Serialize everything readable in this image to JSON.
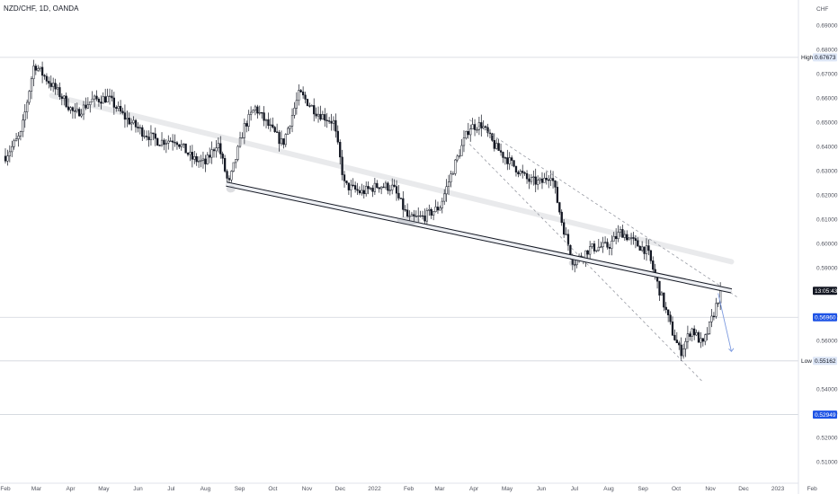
{
  "header": {
    "symbol": "NZD/CHF",
    "interval": "1D",
    "broker": "OANDA",
    "currency": "CHF"
  },
  "chart_data": {
    "type": "candlestick",
    "title": "NZD/CHF, 1D, OANDA",
    "x_ticks": [
      "Feb",
      "Mar",
      "Apr",
      "May",
      "Jun",
      "Jul",
      "Aug",
      "Sep",
      "Oct",
      "Nov",
      "Dec",
      "2022",
      "Feb",
      "Mar",
      "Apr",
      "May",
      "Jun",
      "Jul",
      "Aug",
      "Sep",
      "Oct",
      "Nov",
      "Dec",
      "2023",
      "Feb"
    ],
    "y_ticks": [
      "0.69000",
      "0.68000",
      "0.67000",
      "0.66000",
      "0.65000",
      "0.64000",
      "0.63000",
      "0.62000",
      "0.61000",
      "0.60000",
      "0.59000",
      "0.57000",
      "0.56000",
      "0.54000",
      "0.53000",
      "0.52000",
      "0.51000"
    ],
    "ylim": [
      0.5,
      0.695
    ],
    "price_path": [
      {
        "t": "2021-02-01",
        "v": 0.636
      },
      {
        "t": "2021-02-15",
        "v": 0.645
      },
      {
        "t": "2021-02-27",
        "v": 0.674
      },
      {
        "t": "2021-03-10",
        "v": 0.668
      },
      {
        "t": "2021-03-25",
        "v": 0.66
      },
      {
        "t": "2021-04-05",
        "v": 0.653
      },
      {
        "t": "2021-04-20",
        "v": 0.659
      },
      {
        "t": "2021-05-05",
        "v": 0.66
      },
      {
        "t": "2021-05-20",
        "v": 0.652
      },
      {
        "t": "2021-06-05",
        "v": 0.646
      },
      {
        "t": "2021-06-20",
        "v": 0.642
      },
      {
        "t": "2021-07-05",
        "v": 0.643
      },
      {
        "t": "2021-07-20",
        "v": 0.635
      },
      {
        "t": "2021-08-01",
        "v": 0.633
      },
      {
        "t": "2021-08-12",
        "v": 0.642
      },
      {
        "t": "2021-08-22",
        "v": 0.624
      },
      {
        "t": "2021-09-05",
        "v": 0.648
      },
      {
        "t": "2021-09-15",
        "v": 0.656
      },
      {
        "t": "2021-09-28",
        "v": 0.648
      },
      {
        "t": "2021-10-10",
        "v": 0.641
      },
      {
        "t": "2021-10-25",
        "v": 0.662
      },
      {
        "t": "2021-11-10",
        "v": 0.654
      },
      {
        "t": "2021-11-25",
        "v": 0.65
      },
      {
        "t": "2021-12-05",
        "v": 0.624
      },
      {
        "t": "2021-12-20",
        "v": 0.621
      },
      {
        "t": "2022-01-05",
        "v": 0.624
      },
      {
        "t": "2022-01-18",
        "v": 0.623
      },
      {
        "t": "2022-02-01",
        "v": 0.61
      },
      {
        "t": "2022-02-15",
        "v": 0.611
      },
      {
        "t": "2022-03-01",
        "v": 0.615
      },
      {
        "t": "2022-03-15",
        "v": 0.633
      },
      {
        "t": "2022-03-28",
        "v": 0.648
      },
      {
        "t": "2022-04-08",
        "v": 0.649
      },
      {
        "t": "2022-04-20",
        "v": 0.64
      },
      {
        "t": "2022-05-05",
        "v": 0.633
      },
      {
        "t": "2022-05-20",
        "v": 0.626
      },
      {
        "t": "2022-06-01",
        "v": 0.625
      },
      {
        "t": "2022-06-10",
        "v": 0.629
      },
      {
        "t": "2022-06-20",
        "v": 0.608
      },
      {
        "t": "2022-06-30",
        "v": 0.592
      },
      {
        "t": "2022-07-15",
        "v": 0.598
      },
      {
        "t": "2022-08-01",
        "v": 0.599
      },
      {
        "t": "2022-08-12",
        "v": 0.605
      },
      {
        "t": "2022-08-25",
        "v": 0.6
      },
      {
        "t": "2022-09-05",
        "v": 0.597
      },
      {
        "t": "2022-09-15",
        "v": 0.582
      },
      {
        "t": "2022-09-28",
        "v": 0.563
      },
      {
        "t": "2022-10-05",
        "v": 0.555
      },
      {
        "t": "2022-10-15",
        "v": 0.565
      },
      {
        "t": "2022-10-25",
        "v": 0.558
      },
      {
        "t": "2022-11-01",
        "v": 0.567
      },
      {
        "t": "2022-11-10",
        "v": 0.58
      }
    ],
    "annotations": {
      "high_label": "High",
      "high_value": "0.67673",
      "low_label": "Low",
      "low_value": "0.55162",
      "countdown": "13:05:43",
      "level_1": "0.56960",
      "level_2": "0.52949"
    },
    "grid": false,
    "y_axis_side": "right"
  },
  "colors": {
    "candle": "#131722",
    "tag_blue": "#1e53e5",
    "tag_dark": "#131722",
    "tag_light": "#dde6f6",
    "trendline": "#131722",
    "arrow": "#7e9be0",
    "channel": "#9598a1",
    "band": "#e9eaec"
  }
}
